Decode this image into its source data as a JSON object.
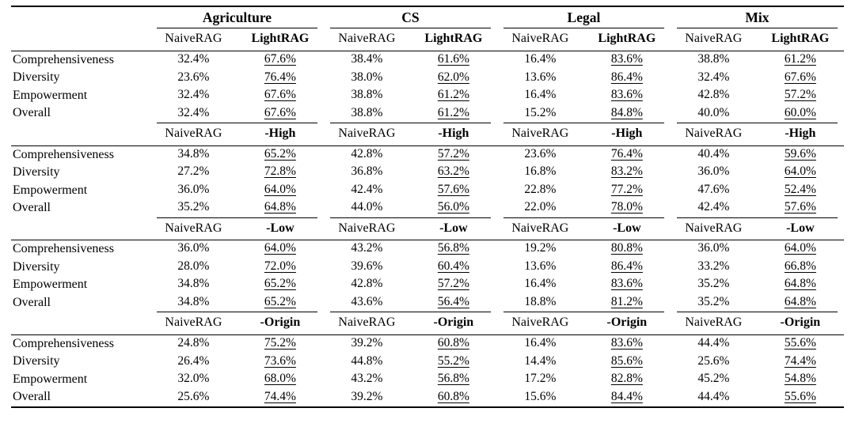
{
  "table": {
    "groups": [
      "Agriculture",
      "CS",
      "Legal",
      "Mix"
    ],
    "metrics": [
      "Comprehensiveness",
      "Diversity",
      "Empowerment",
      "Overall"
    ],
    "blocks": [
      {
        "baseline_label": "NaiveRAG",
        "variant_label": "LightRAG",
        "values": [
          [
            [
              "32.4%",
              "67.6%"
            ],
            [
              "38.4%",
              "61.6%"
            ],
            [
              "16.4%",
              "83.6%"
            ],
            [
              "38.8%",
              "61.2%"
            ]
          ],
          [
            [
              "23.6%",
              "76.4%"
            ],
            [
              "38.0%",
              "62.0%"
            ],
            [
              "13.6%",
              "86.4%"
            ],
            [
              "32.4%",
              "67.6%"
            ]
          ],
          [
            [
              "32.4%",
              "67.6%"
            ],
            [
              "38.8%",
              "61.2%"
            ],
            [
              "16.4%",
              "83.6%"
            ],
            [
              "42.8%",
              "57.2%"
            ]
          ],
          [
            [
              "32.4%",
              "67.6%"
            ],
            [
              "38.8%",
              "61.2%"
            ],
            [
              "15.2%",
              "84.8%"
            ],
            [
              "40.0%",
              "60.0%"
            ]
          ]
        ]
      },
      {
        "baseline_label": "NaiveRAG",
        "variant_label": "-High",
        "values": [
          [
            [
              "34.8%",
              "65.2%"
            ],
            [
              "42.8%",
              "57.2%"
            ],
            [
              "23.6%",
              "76.4%"
            ],
            [
              "40.4%",
              "59.6%"
            ]
          ],
          [
            [
              "27.2%",
              "72.8%"
            ],
            [
              "36.8%",
              "63.2%"
            ],
            [
              "16.8%",
              "83.2%"
            ],
            [
              "36.0%",
              "64.0%"
            ]
          ],
          [
            [
              "36.0%",
              "64.0%"
            ],
            [
              "42.4%",
              "57.6%"
            ],
            [
              "22.8%",
              "77.2%"
            ],
            [
              "47.6%",
              "52.4%"
            ]
          ],
          [
            [
              "35.2%",
              "64.8%"
            ],
            [
              "44.0%",
              "56.0%"
            ],
            [
              "22.0%",
              "78.0%"
            ],
            [
              "42.4%",
              "57.6%"
            ]
          ]
        ]
      },
      {
        "baseline_label": "NaiveRAG",
        "variant_label": "-Low",
        "values": [
          [
            [
              "36.0%",
              "64.0%"
            ],
            [
              "43.2%",
              "56.8%"
            ],
            [
              "19.2%",
              "80.8%"
            ],
            [
              "36.0%",
              "64.0%"
            ]
          ],
          [
            [
              "28.0%",
              "72.0%"
            ],
            [
              "39.6%",
              "60.4%"
            ],
            [
              "13.6%",
              "86.4%"
            ],
            [
              "33.2%",
              "66.8%"
            ]
          ],
          [
            [
              "34.8%",
              "65.2%"
            ],
            [
              "42.8%",
              "57.2%"
            ],
            [
              "16.4%",
              "83.6%"
            ],
            [
              "35.2%",
              "64.8%"
            ]
          ],
          [
            [
              "34.8%",
              "65.2%"
            ],
            [
              "43.6%",
              "56.4%"
            ],
            [
              "18.8%",
              "81.2%"
            ],
            [
              "35.2%",
              "64.8%"
            ]
          ]
        ]
      },
      {
        "baseline_label": "NaiveRAG",
        "variant_label": "-Origin",
        "values": [
          [
            [
              "24.8%",
              "75.2%"
            ],
            [
              "39.2%",
              "60.8%"
            ],
            [
              "16.4%",
              "83.6%"
            ],
            [
              "44.4%",
              "55.6%"
            ]
          ],
          [
            [
              "26.4%",
              "73.6%"
            ],
            [
              "44.8%",
              "55.2%"
            ],
            [
              "14.4%",
              "85.6%"
            ],
            [
              "25.6%",
              "74.4%"
            ]
          ],
          [
            [
              "32.0%",
              "68.0%"
            ],
            [
              "43.2%",
              "56.8%"
            ],
            [
              "17.2%",
              "82.8%"
            ],
            [
              "45.2%",
              "54.8%"
            ]
          ],
          [
            [
              "25.6%",
              "74.4%"
            ],
            [
              "39.2%",
              "60.8%"
            ],
            [
              "15.6%",
              "84.4%"
            ],
            [
              "44.4%",
              "55.6%"
            ]
          ]
        ]
      }
    ]
  }
}
